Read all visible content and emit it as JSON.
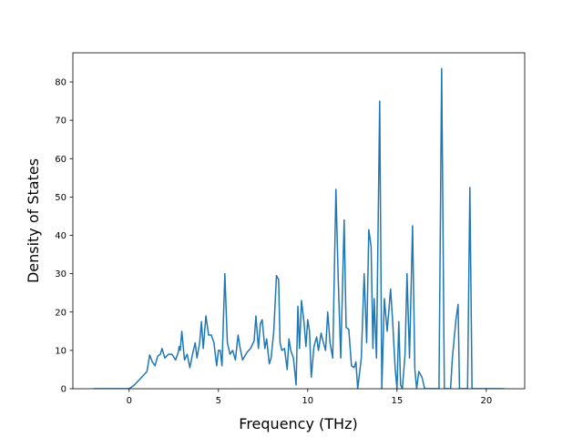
{
  "chart_data": {
    "type": "line",
    "x_label": "Frequency (THz)",
    "y_label": "Density of States",
    "color": "#1f77b4",
    "xlim": [
      -3.15,
      22.15
    ],
    "ylim": [
      0,
      87.6
    ],
    "xticks": [
      0,
      5,
      10,
      15,
      20
    ],
    "yticks": [
      0,
      10,
      20,
      30,
      40,
      50,
      60,
      70,
      80
    ],
    "x": [
      -2,
      0,
      0.3,
      0.6,
      0.9,
      1.0,
      1.15,
      1.3,
      1.45,
      1.6,
      1.75,
      1.84,
      2.0,
      2.2,
      2.4,
      2.6,
      2.75,
      2.8,
      2.86,
      2.95,
      3.1,
      3.25,
      3.4,
      3.55,
      3.7,
      3.8,
      3.95,
      4.05,
      4.15,
      4.3,
      4.45,
      4.6,
      4.75,
      4.9,
      5.0,
      5.1,
      5.2,
      5.36,
      5.5,
      5.65,
      5.8,
      5.95,
      6.1,
      6.2,
      6.35,
      6.6,
      6.8,
      7.0,
      7.1,
      7.24,
      7.35,
      7.45,
      7.6,
      7.7,
      7.85,
      7.95,
      8.1,
      8.25,
      8.37,
      8.45,
      8.55,
      8.7,
      8.85,
      8.95,
      9.05,
      9.2,
      9.35,
      9.45,
      9.54,
      9.65,
      9.8,
      9.9,
      10.0,
      10.1,
      10.2,
      10.35,
      10.5,
      10.6,
      10.75,
      10.85,
      11.0,
      11.12,
      11.25,
      11.4,
      11.58,
      11.7,
      11.85,
      12.04,
      12.15,
      12.3,
      12.45,
      12.6,
      12.7,
      12.8,
      12.9,
      13.0,
      13.16,
      13.3,
      13.42,
      13.55,
      13.65,
      13.72,
      13.85,
      14.03,
      14.15,
      14.29,
      14.45,
      14.64,
      14.75,
      14.9,
      15.0,
      15.1,
      15.2,
      15.3,
      15.45,
      15.56,
      15.7,
      15.87,
      16.0,
      16.1,
      16.22,
      16.4,
      16.55,
      17.35,
      17.5,
      17.65,
      18.0,
      18.1,
      18.3,
      18.42,
      18.5,
      18.95,
      19.08,
      19.2,
      21
    ],
    "values": [
      0,
      0,
      1,
      2.5,
      4,
      4.5,
      8.8,
      7,
      6,
      8.5,
      9,
      10.5,
      8,
      9,
      9,
      7.5,
      9.5,
      11,
      10,
      15,
      7.5,
      9,
      5.5,
      9,
      12,
      8,
      12,
      17.5,
      10.5,
      19,
      14,
      14,
      12,
      6,
      10,
      10,
      6,
      30,
      12,
      9,
      10,
      7.5,
      14,
      11,
      7.5,
      9.5,
      10.5,
      12.5,
      19,
      10.5,
      17,
      18,
      10.5,
      13,
      6.5,
      8,
      15,
      29.5,
      28.5,
      12,
      10,
      10.5,
      5,
      13,
      10,
      8,
      1,
      21.5,
      10.5,
      23,
      17,
      11,
      18,
      15,
      3,
      11,
      13.5,
      10,
      14.5,
      12.5,
      10,
      20,
      12,
      8,
      52,
      30,
      8,
      44,
      16,
      15.5,
      6,
      5.5,
      7,
      0,
      4,
      8,
      30,
      12,
      41.5,
      37,
      10.5,
      23.5,
      8,
      75,
      0,
      23.5,
      15,
      26,
      18,
      5,
      0,
      17.5,
      1,
      0,
      9,
      30,
      8,
      42.5,
      5,
      0,
      4.5,
      3,
      0,
      0,
      83.5,
      0,
      0,
      8,
      18,
      22,
      0,
      0,
      52.5,
      0,
      0
    ]
  }
}
